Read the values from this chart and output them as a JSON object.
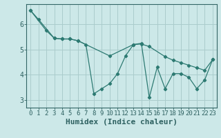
{
  "xlabel": "Humidex (Indice chaleur)",
  "bg_color": "#cce8e8",
  "grid_color": "#aacccc",
  "line_color": "#2d7a72",
  "marker_color": "#2d7a72",
  "xlim": [
    -0.5,
    23.5
  ],
  "ylim": [
    2.7,
    6.8
  ],
  "yticks": [
    3,
    4,
    5,
    6
  ],
  "xticks": [
    0,
    1,
    2,
    3,
    4,
    5,
    6,
    7,
    8,
    9,
    10,
    11,
    12,
    13,
    14,
    15,
    16,
    17,
    18,
    19,
    20,
    21,
    22,
    23
  ],
  "series1_x": [
    0,
    1,
    3,
    4,
    5,
    6,
    7,
    8,
    9,
    10,
    11,
    12,
    13,
    14,
    15,
    16,
    17,
    18,
    19,
    20,
    21,
    22,
    23
  ],
  "series1_y": [
    6.55,
    6.2,
    5.45,
    5.42,
    5.42,
    5.35,
    5.2,
    3.25,
    3.45,
    3.65,
    4.05,
    4.75,
    5.2,
    5.25,
    3.1,
    4.3,
    3.45,
    4.05,
    4.05,
    3.9,
    3.45,
    3.8,
    4.6
  ],
  "series2_x": [
    0,
    2,
    3,
    4,
    5,
    6,
    10,
    13,
    14,
    15,
    17,
    18,
    19,
    20,
    21,
    22,
    23
  ],
  "series2_y": [
    6.55,
    5.75,
    5.45,
    5.42,
    5.42,
    5.35,
    4.75,
    5.2,
    5.22,
    5.12,
    4.72,
    4.58,
    4.48,
    4.38,
    4.28,
    4.18,
    4.6
  ],
  "xlabel_fontsize": 8,
  "tick_fontsize": 6.5
}
